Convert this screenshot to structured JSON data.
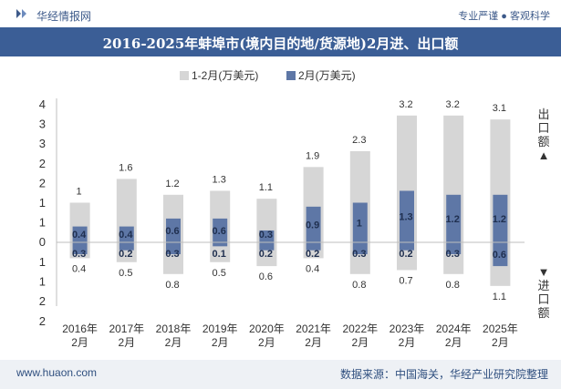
{
  "header": {
    "brand": "华经情报网",
    "tagline": "专业严谨 ● 客观科学"
  },
  "title": "2016-2025年蚌埠市(境内目的地/货源地)2月进、出口额",
  "footer": {
    "site": "www.huaon.com",
    "source": "数据来源：中国海关，华经产业研究院整理"
  },
  "colors": {
    "title_bar": "#3b5e96",
    "series_total": "#d6d6d6",
    "series_feb": "#5e77a6"
  },
  "chart_data": {
    "type": "bar",
    "categories": [
      "2016年\n2月",
      "2017年\n2月",
      "2018年\n2月",
      "2019年\n2月",
      "2020年\n2月",
      "2021年\n2月",
      "2022年\n2月",
      "2023年\n2月",
      "2024年\n2月",
      "2025年\n2月"
    ],
    "series": [
      {
        "name": "1-2月(万美元)",
        "export": [
          1,
          1.6,
          1.2,
          1.3,
          1.1,
          1.9,
          2.3,
          3.2,
          3.2,
          3.1
        ],
        "import": [
          0.4,
          0.5,
          0.8,
          0.5,
          0.6,
          0.4,
          0.8,
          0.7,
          0.8,
          1.1
        ]
      },
      {
        "name": "2月(万美元)",
        "export": [
          0.4,
          0.4,
          0.6,
          0.6,
          0.3,
          0.9,
          1,
          1.3,
          1.2,
          1.2
        ],
        "import": [
          0.3,
          0.2,
          0.3,
          0.1,
          0.2,
          0.2,
          0.3,
          0.2,
          0.3,
          0.6
        ]
      }
    ],
    "y_ticks_upper": [
      "4",
      "3",
      "3",
      "2",
      "2",
      "1",
      "1",
      "0"
    ],
    "y_ticks_lower": [
      "1",
      "1",
      "2",
      "2"
    ],
    "upper_axis_label": "出口额▲",
    "lower_axis_label": "▼进口额",
    "ylim": [
      -1.5,
      3.5
    ],
    "legend_position": "top"
  }
}
